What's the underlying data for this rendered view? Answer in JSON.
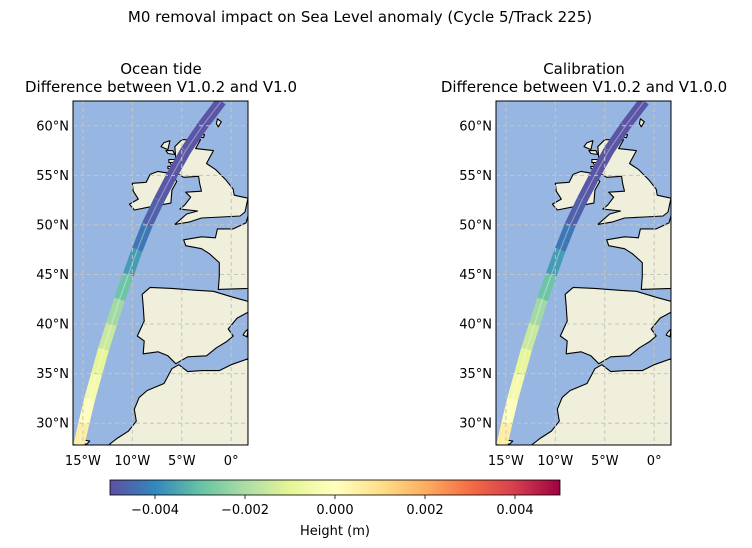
{
  "suptitle": "M0 removal impact on Sea Level anomaly (Cycle 5/Track 225)",
  "colors": {
    "ocean": "#97b6e1",
    "land": "#efefdb",
    "coast": "#000000",
    "grid": "#c6c6c0"
  },
  "colorbar": {
    "label": "Height (m)",
    "colormap": "Spectral_r",
    "vmin": -0.005,
    "vmax": 0.005,
    "stops": [
      "#5e4fa2",
      "#3288bd",
      "#66c2a5",
      "#abdda4",
      "#e6f598",
      "#ffffbf",
      "#fee08b",
      "#fdae61",
      "#f46d43",
      "#d53e4f",
      "#9e0142"
    ],
    "ticks": [
      {
        "value": -0.004,
        "label": "−0.004"
      },
      {
        "value": -0.002,
        "label": "−0.002"
      },
      {
        "value": 0.0,
        "label": "0.000"
      },
      {
        "value": 0.002,
        "label": "0.002"
      },
      {
        "value": 0.004,
        "label": "0.004"
      }
    ]
  },
  "chart_data": [
    {
      "type": "map",
      "title_line1": "Ocean tide",
      "title_line2": "Difference between V1.0.2 and V1.0",
      "lon_range": [
        -16.0,
        1.7
      ],
      "lat_range": [
        27.8,
        62.5
      ],
      "x_ticks": [
        {
          "value": -15,
          "label": "15°W"
        },
        {
          "value": -10,
          "label": "10°W"
        },
        {
          "value": -5,
          "label": "5°W"
        },
        {
          "value": 0,
          "label": "0°"
        }
      ],
      "y_ticks": [
        {
          "value": 30,
          "label": "30°N"
        },
        {
          "value": 35,
          "label": "35°N"
        },
        {
          "value": 40,
          "label": "40°N"
        },
        {
          "value": 45,
          "label": "45°N"
        },
        {
          "value": 50,
          "label": "50°N"
        },
        {
          "value": 55,
          "label": "55°N"
        },
        {
          "value": 60,
          "label": "60°N"
        }
      ],
      "track": [
        {
          "lon": -15.4,
          "lat": 27.8,
          "value": 0.0007
        },
        {
          "lon": -14.9,
          "lat": 30.0,
          "value": 0.0004
        },
        {
          "lon": -14.3,
          "lat": 32.5,
          "value": -0.0003
        },
        {
          "lon": -13.6,
          "lat": 35.0,
          "value": -0.0007
        },
        {
          "lon": -12.9,
          "lat": 37.5,
          "value": -0.0012
        },
        {
          "lon": -12.1,
          "lat": 40.0,
          "value": -0.0018
        },
        {
          "lon": -11.3,
          "lat": 42.5,
          "value": -0.0025
        },
        {
          "lon": -10.4,
          "lat": 45.0,
          "value": -0.0033
        },
        {
          "lon": -9.5,
          "lat": 47.5,
          "value": -0.004
        },
        {
          "lon": -8.5,
          "lat": 50.0,
          "value": -0.0046
        },
        {
          "lon": -7.3,
          "lat": 52.5,
          "value": -0.0048
        },
        {
          "lon": -6.0,
          "lat": 55.0,
          "value": -0.0049
        },
        {
          "lon": -4.6,
          "lat": 57.5,
          "value": -0.0049
        },
        {
          "lon": -2.9,
          "lat": 60.0,
          "value": -0.0049
        },
        {
          "lon": -1.0,
          "lat": 62.5,
          "value": -0.0049
        }
      ]
    },
    {
      "type": "map",
      "title_line1": "Calibration",
      "title_line2": "Difference between V1.0.2 and V1.0.0",
      "lon_range": [
        -16.0,
        1.7
      ],
      "lat_range": [
        27.8,
        62.5
      ],
      "x_ticks": [
        {
          "value": -15,
          "label": "15°W"
        },
        {
          "value": -10,
          "label": "10°W"
        },
        {
          "value": -5,
          "label": "5°W"
        },
        {
          "value": 0,
          "label": "0°"
        }
      ],
      "y_ticks": [
        {
          "value": 30,
          "label": "30°N"
        },
        {
          "value": 35,
          "label": "35°N"
        },
        {
          "value": 40,
          "label": "40°N"
        },
        {
          "value": 45,
          "label": "45°N"
        },
        {
          "value": 50,
          "label": "50°N"
        },
        {
          "value": 55,
          "label": "55°N"
        },
        {
          "value": 60,
          "label": "60°N"
        }
      ],
      "track": [
        {
          "lon": -15.4,
          "lat": 27.8,
          "value": 0.0007
        },
        {
          "lon": -14.9,
          "lat": 30.0,
          "value": 0.0004
        },
        {
          "lon": -14.3,
          "lat": 32.5,
          "value": -0.0003
        },
        {
          "lon": -13.6,
          "lat": 35.0,
          "value": -0.0007
        },
        {
          "lon": -12.9,
          "lat": 37.5,
          "value": -0.0012
        },
        {
          "lon": -12.1,
          "lat": 40.0,
          "value": -0.0018
        },
        {
          "lon": -11.3,
          "lat": 42.5,
          "value": -0.0025
        },
        {
          "lon": -10.4,
          "lat": 45.0,
          "value": -0.0033
        },
        {
          "lon": -9.5,
          "lat": 47.5,
          "value": -0.004
        },
        {
          "lon": -8.5,
          "lat": 50.0,
          "value": -0.0046
        },
        {
          "lon": -7.3,
          "lat": 52.5,
          "value": -0.0048
        },
        {
          "lon": -6.0,
          "lat": 55.0,
          "value": -0.0049
        },
        {
          "lon": -4.6,
          "lat": 57.5,
          "value": -0.0049
        },
        {
          "lon": -2.9,
          "lat": 60.0,
          "value": -0.0049
        },
        {
          "lon": -1.0,
          "lat": 62.5,
          "value": -0.0049
        }
      ]
    }
  ]
}
